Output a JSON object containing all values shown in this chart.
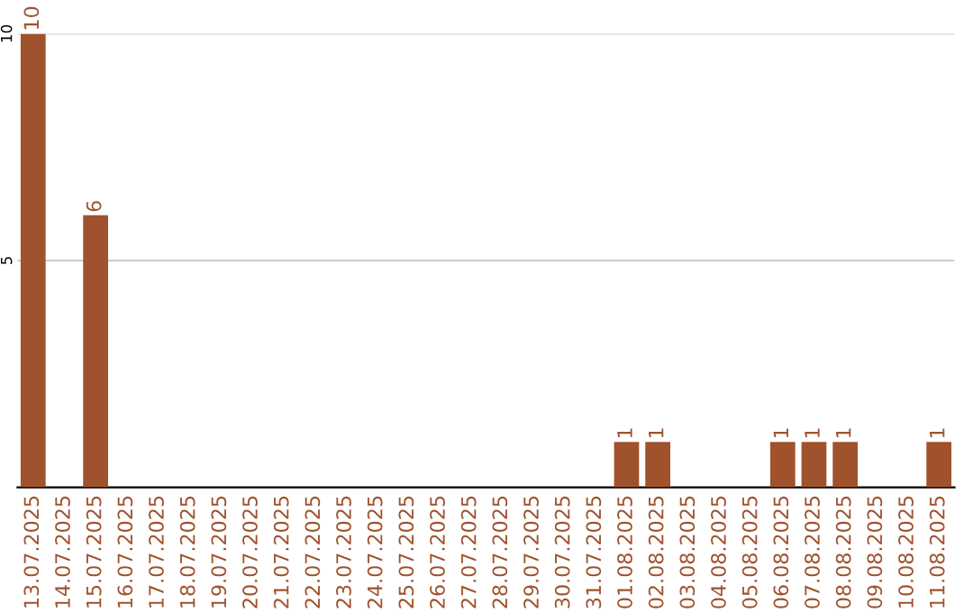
{
  "chart_data": {
    "type": "bar",
    "categories": [
      "13.07.2025",
      "14.07.2025",
      "15.07.2025",
      "16.07.2025",
      "17.07.2025",
      "18.07.2025",
      "19.07.2025",
      "20.07.2025",
      "21.07.2025",
      "22.07.2025",
      "23.07.2025",
      "24.07.2025",
      "25.07.2025",
      "26.07.2025",
      "27.07.2025",
      "28.07.2025",
      "29.07.2025",
      "30.07.2025",
      "31.07.2025",
      "01.08.2025",
      "02.08.2025",
      "03.08.2025",
      "04.08.2025",
      "05.08.2025",
      "06.08.2025",
      "07.08.2025",
      "08.08.2025",
      "09.08.2025",
      "10.08.2025",
      "11.08.2025"
    ],
    "values": [
      10,
      0,
      6,
      0,
      0,
      0,
      0,
      0,
      0,
      0,
      0,
      0,
      0,
      0,
      0,
      0,
      0,
      0,
      0,
      1,
      1,
      0,
      0,
      0,
      1,
      1,
      1,
      0,
      0,
      1
    ],
    "value_labels": [
      "10",
      null,
      "6",
      null,
      null,
      null,
      null,
      null,
      null,
      null,
      null,
      null,
      null,
      null,
      null,
      null,
      null,
      null,
      null,
      "1",
      "1",
      null,
      null,
      null,
      "1",
      "1",
      "1",
      null,
      null,
      "1"
    ],
    "color": "#a0522d",
    "ylim": [
      0,
      10
    ],
    "yticks": [
      5,
      10
    ],
    "grid": "y"
  }
}
